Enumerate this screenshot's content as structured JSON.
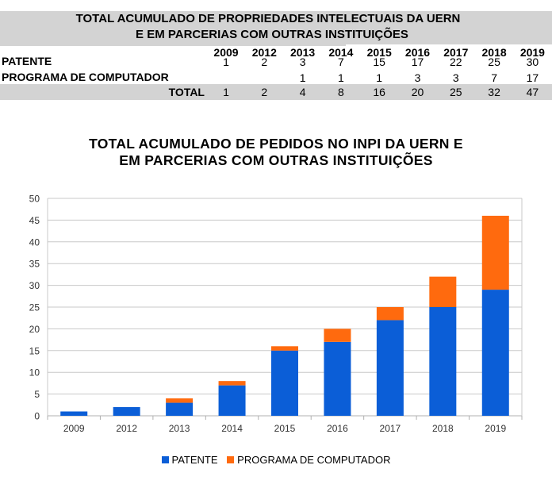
{
  "table": {
    "title_line1": "TOTAL ACUMULADO DE PROPRIEDADES INTELECTUAIS DA UERN",
    "title_line2": "E EM PARCERIAS COM OUTRAS INSTITUIÇÕES",
    "years": [
      "2009",
      "2012",
      "2013",
      "2014",
      "2015",
      "2016",
      "2017",
      "2018",
      "2019"
    ],
    "rows": [
      {
        "label": "PATENTE",
        "values": [
          "1",
          "2",
          "3",
          "7",
          "15",
          "17",
          "22",
          "25",
          "30"
        ]
      },
      {
        "label": "PROGRAMA DE COMPUTADOR",
        "values": [
          "",
          "",
          "1",
          "1",
          "1",
          "3",
          "3",
          "7",
          "17"
        ]
      }
    ],
    "total": {
      "label": "TOTAL",
      "values": [
        "1",
        "2",
        "4",
        "8",
        "16",
        "20",
        "25",
        "32",
        "47"
      ]
    }
  },
  "chart_data": {
    "type": "bar",
    "stacked": true,
    "title_line1": "TOTAL ACUMULADO DE PEDIDOS NO INPI DA UERN E",
    "title_line2": "EM PARCERIAS COM OUTRAS INSTITUIÇÕES",
    "categories": [
      "2009",
      "2012",
      "2013",
      "2014",
      "2015",
      "2016",
      "2017",
      "2018",
      "2019"
    ],
    "series": [
      {
        "name": "PATENTE",
        "color": "#0b5ed7",
        "values": [
          1,
          2,
          3,
          7,
          15,
          17,
          22,
          25,
          29
        ]
      },
      {
        "name": "PROGRAMA DE COMPUTADOR",
        "color": "#ff6a0e",
        "values": [
          0,
          0,
          1,
          1,
          1,
          3,
          3,
          7,
          17
        ]
      }
    ],
    "ylim": [
      0,
      50
    ],
    "yticks": [
      "0",
      "5",
      "10",
      "15",
      "20",
      "25",
      "30",
      "35",
      "40",
      "45",
      "50"
    ],
    "grid": true,
    "legend_position": "bottom"
  }
}
